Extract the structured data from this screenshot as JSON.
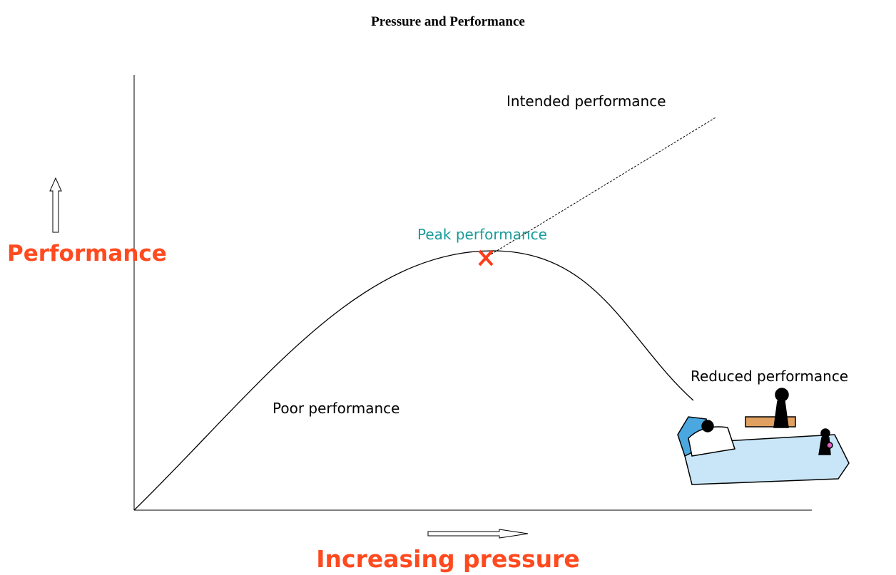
{
  "title": "Pressure and Performance",
  "axes": {
    "y_label": "Performance",
    "x_label": "Increasing pressure"
  },
  "annotations": {
    "intended": "Intended performance",
    "peak": "Peak performance",
    "poor": "Poor performance",
    "reduced": "Reduced performance"
  }
}
